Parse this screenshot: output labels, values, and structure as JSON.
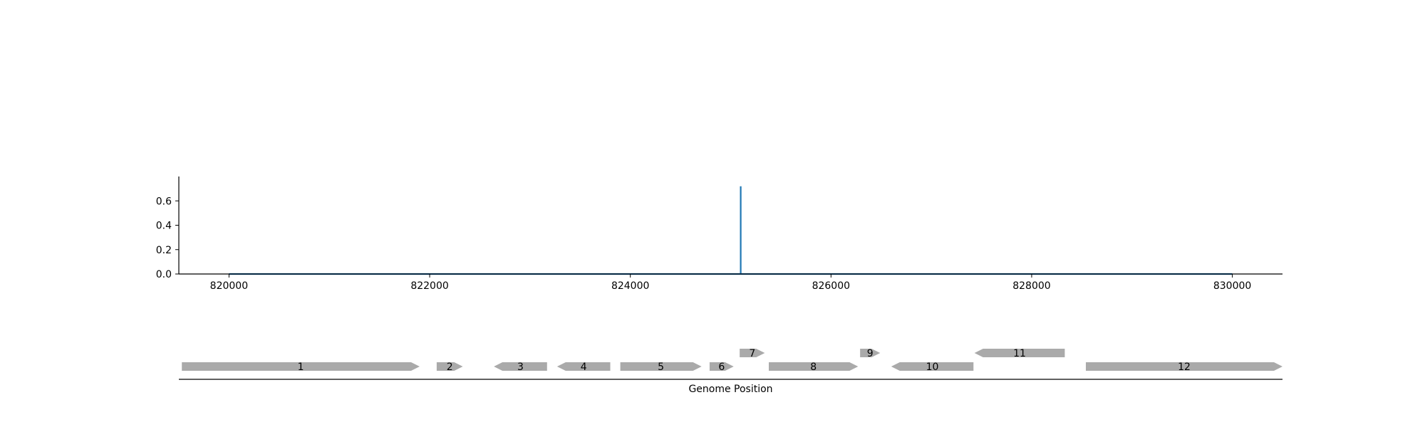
{
  "chart_data": [
    {
      "type": "line",
      "series": [
        {
          "x": [
            820000,
            825100,
            825100,
            825100,
            830000
          ],
          "y": [
            0,
            0,
            0.72,
            0,
            0
          ]
        }
      ],
      "xlim": [
        819500,
        830500
      ],
      "ylim": [
        0,
        0.8
      ],
      "xticks": [
        820000,
        822000,
        824000,
        826000,
        828000,
        830000
      ],
      "xtick_labels": [
        "820000",
        "822000",
        "824000",
        "826000",
        "828000",
        "830000"
      ],
      "yticks": [
        0.0,
        0.2,
        0.4,
        0.6
      ],
      "ytick_labels": [
        "0.0",
        "0.2",
        "0.4",
        "0.6"
      ],
      "line_color": "#1f77b4",
      "grid": false
    },
    {
      "type": "gene-track",
      "xlabel": "Genome Position",
      "xlim": [
        819500,
        830500
      ],
      "gene_color": "#aaaaaa",
      "genes": [
        {
          "label": "1",
          "start": 819530,
          "end": 821900,
          "strand": "+",
          "row": 0
        },
        {
          "label": "2",
          "start": 822070,
          "end": 822330,
          "strand": "+",
          "row": 0
        },
        {
          "label": "3",
          "start": 822640,
          "end": 823170,
          "strand": "-",
          "row": 0
        },
        {
          "label": "4",
          "start": 823270,
          "end": 823800,
          "strand": "-",
          "row": 0
        },
        {
          "label": "5",
          "start": 823900,
          "end": 824710,
          "strand": "+",
          "row": 0
        },
        {
          "label": "6",
          "start": 824790,
          "end": 825030,
          "strand": "+",
          "row": 0
        },
        {
          "label": "7",
          "start": 825090,
          "end": 825340,
          "strand": "+",
          "row": 1
        },
        {
          "label": "8",
          "start": 825380,
          "end": 826270,
          "strand": "+",
          "row": 0
        },
        {
          "label": "9",
          "start": 826290,
          "end": 826490,
          "strand": "+",
          "row": 1
        },
        {
          "label": "10",
          "start": 826600,
          "end": 827420,
          "strand": "-",
          "row": 0
        },
        {
          "label": "11",
          "start": 827430,
          "end": 828330,
          "strand": "-",
          "row": 1
        },
        {
          "label": "12",
          "start": 828540,
          "end": 830500,
          "strand": "+",
          "row": 0
        }
      ]
    }
  ]
}
